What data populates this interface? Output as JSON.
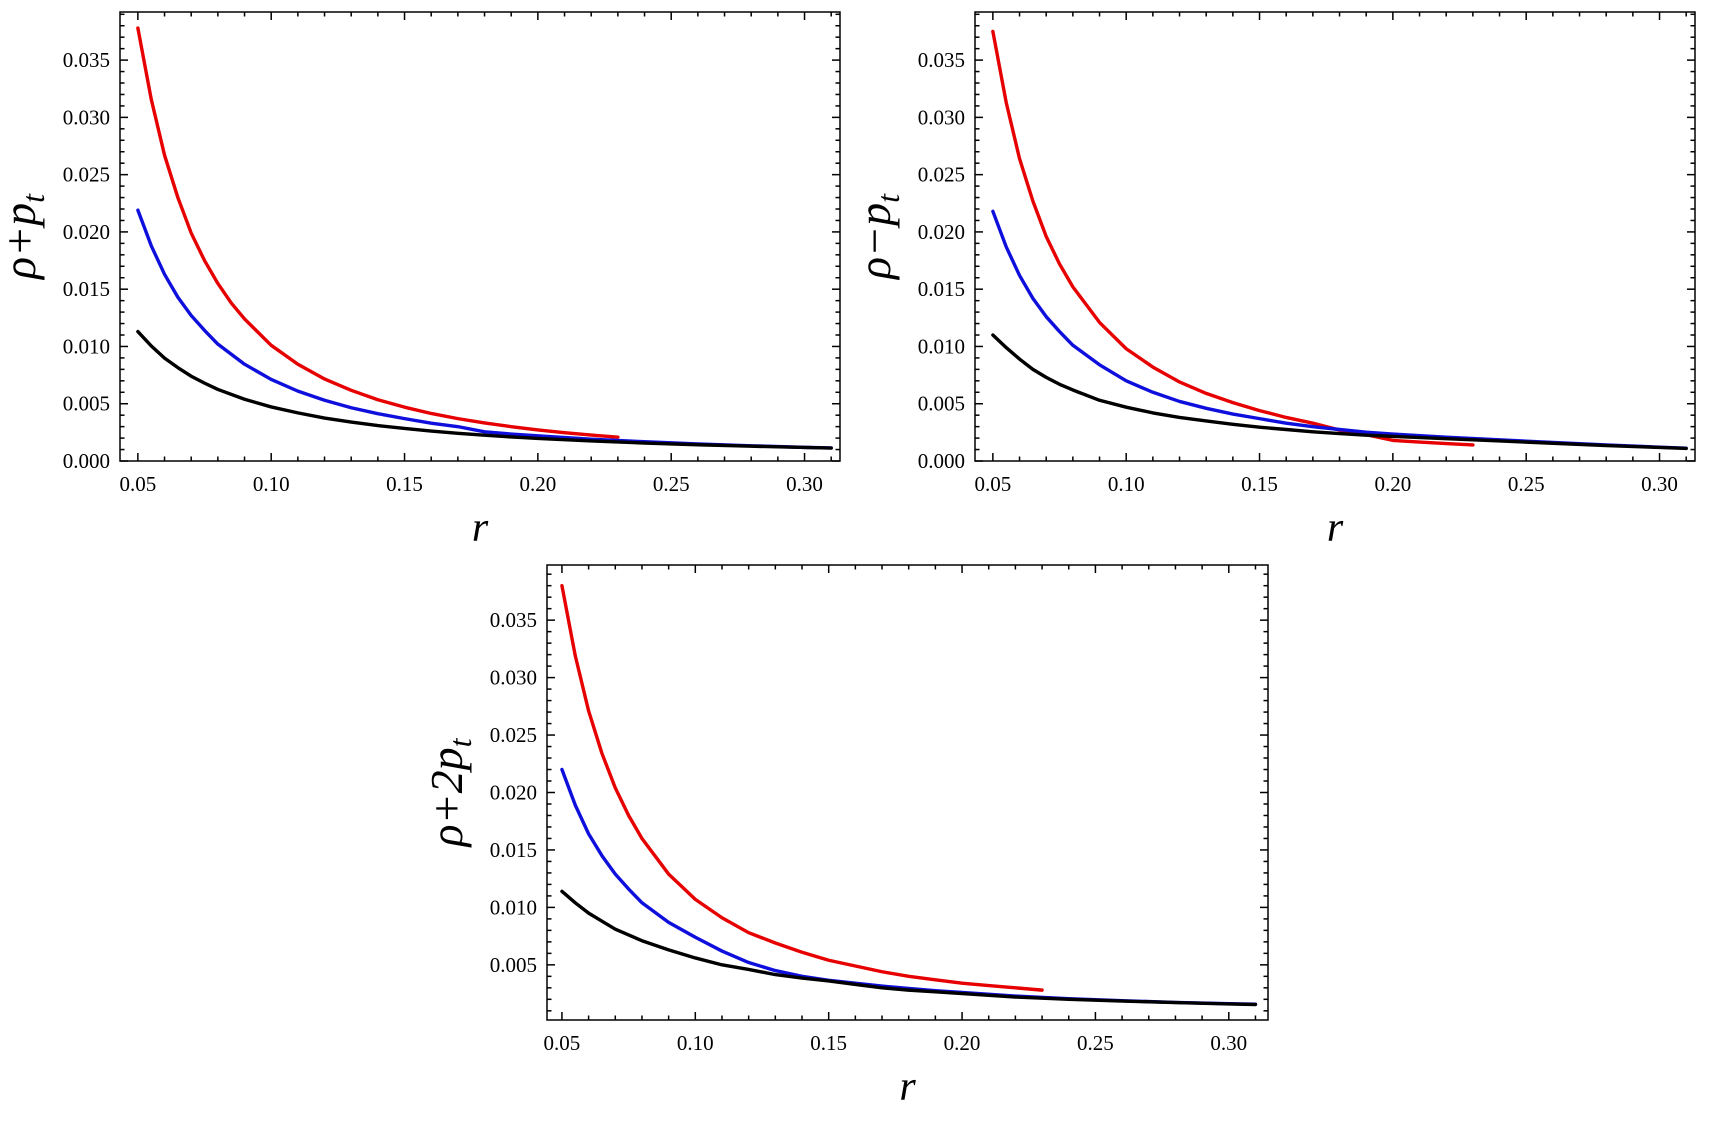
{
  "figure": {
    "background": "#ffffff",
    "colors": {
      "red": "#e60000",
      "blue": "#0f0fdd",
      "black": "#000000"
    },
    "frame_color": "#000000",
    "tick_label_color": "#000000"
  },
  "chart_data": [
    {
      "id": "top-left",
      "type": "line",
      "title": "",
      "xlabel": "r",
      "ylabel": "ρ+p_t",
      "xlim": [
        0.0433,
        0.3133
      ],
      "ylim": [
        0.0,
        0.0392
      ],
      "xticks": [
        0.05,
        0.1,
        0.15,
        0.2,
        0.25,
        0.3
      ],
      "xtick_labels": [
        "0.05",
        "0.10",
        "0.15",
        "0.20",
        "0.25",
        "0.30"
      ],
      "yticks": [
        0.0,
        0.005,
        0.01,
        0.015,
        0.02,
        0.025,
        0.03,
        0.035
      ],
      "ytick_labels": [
        "0.000",
        "0.005",
        "0.010",
        "0.015",
        "0.020",
        "0.025",
        "0.030",
        "0.035"
      ],
      "x_minor_step": 0.01,
      "y_minor_step": 0.001,
      "grid": false,
      "legend": "none",
      "series": [
        {
          "name": "red-curve",
          "color_key": "red",
          "points": [
            [
              0.05,
              0.0378
            ],
            [
              0.055,
              0.0316
            ],
            [
              0.06,
              0.0267
            ],
            [
              0.065,
              0.023
            ],
            [
              0.07,
              0.0199
            ],
            [
              0.075,
              0.0175
            ],
            [
              0.08,
              0.0155
            ],
            [
              0.085,
              0.0138
            ],
            [
              0.09,
              0.0124
            ],
            [
              0.1,
              0.0101
            ],
            [
              0.11,
              0.00845
            ],
            [
              0.12,
              0.00716
            ],
            [
              0.13,
              0.00617
            ],
            [
              0.14,
              0.00535
            ],
            [
              0.15,
              0.0047
            ],
            [
              0.16,
              0.00415
            ],
            [
              0.17,
              0.0037
            ],
            [
              0.18,
              0.00332
            ],
            [
              0.19,
              0.003
            ],
            [
              0.2,
              0.00271
            ],
            [
              0.21,
              0.00247
            ],
            [
              0.22,
              0.00226
            ],
            [
              0.23,
              0.00208
            ]
          ]
        },
        {
          "name": "blue-curve",
          "color_key": "blue",
          "points": [
            [
              0.05,
              0.0219
            ],
            [
              0.055,
              0.0188
            ],
            [
              0.06,
              0.0163
            ],
            [
              0.065,
              0.0143
            ],
            [
              0.07,
              0.0127
            ],
            [
              0.075,
              0.0114
            ],
            [
              0.08,
              0.0102
            ],
            [
              0.09,
              0.00845
            ],
            [
              0.1,
              0.00712
            ],
            [
              0.11,
              0.0061
            ],
            [
              0.12,
              0.0053
            ],
            [
              0.13,
              0.00465
            ],
            [
              0.14,
              0.00413
            ],
            [
              0.15,
              0.0037
            ],
            [
              0.16,
              0.0033
            ],
            [
              0.17,
              0.003
            ],
            [
              0.18,
              0.00255
            ],
            [
              0.19,
              0.00235
            ],
            [
              0.2,
              0.0022
            ],
            [
              0.22,
              0.0019
            ],
            [
              0.24,
              0.00168
            ],
            [
              0.26,
              0.00149
            ],
            [
              0.28,
              0.00133
            ],
            [
              0.3,
              0.00119
            ],
            [
              0.31,
              0.00114
            ]
          ]
        },
        {
          "name": "black-curve",
          "color_key": "black",
          "points": [
            [
              0.05,
              0.0113
            ],
            [
              0.055,
              0.01005
            ],
            [
              0.06,
              0.00898
            ],
            [
              0.065,
              0.00815
            ],
            [
              0.07,
              0.0074
            ],
            [
              0.075,
              0.0068
            ],
            [
              0.08,
              0.00625
            ],
            [
              0.09,
              0.00539
            ],
            [
              0.1,
              0.00472
            ],
            [
              0.11,
              0.0042
            ],
            [
              0.12,
              0.00375
            ],
            [
              0.13,
              0.0034
            ],
            [
              0.14,
              0.00309
            ],
            [
              0.15,
              0.00284
            ],
            [
              0.16,
              0.00261
            ],
            [
              0.17,
              0.00242
            ],
            [
              0.18,
              0.00225
            ],
            [
              0.19,
              0.0021
            ],
            [
              0.2,
              0.00197
            ],
            [
              0.22,
              0.00175
            ],
            [
              0.24,
              0.00157
            ],
            [
              0.26,
              0.00142
            ],
            [
              0.28,
              0.00129
            ],
            [
              0.3,
              0.00118
            ],
            [
              0.31,
              0.00113
            ]
          ]
        }
      ]
    },
    {
      "id": "top-right",
      "type": "line",
      "title": "",
      "xlabel": "r",
      "ylabel": "ρ−p_t",
      "xlim": [
        0.0433,
        0.3133
      ],
      "ylim": [
        0.0,
        0.0392
      ],
      "xticks": [
        0.05,
        0.1,
        0.15,
        0.2,
        0.25,
        0.3
      ],
      "xtick_labels": [
        "0.05",
        "0.10",
        "0.15",
        "0.20",
        "0.25",
        "0.30"
      ],
      "yticks": [
        0.0,
        0.005,
        0.01,
        0.015,
        0.02,
        0.025,
        0.03,
        0.035
      ],
      "ytick_labels": [
        "0.000",
        "0.005",
        "0.010",
        "0.015",
        "0.020",
        "0.025",
        "0.030",
        "0.035"
      ],
      "x_minor_step": 0.01,
      "y_minor_step": 0.001,
      "grid": false,
      "legend": "none",
      "series": [
        {
          "name": "red-curve",
          "color_key": "red",
          "points": [
            [
              0.05,
              0.0375
            ],
            [
              0.055,
              0.0313
            ],
            [
              0.06,
              0.0264
            ],
            [
              0.065,
              0.0227
            ],
            [
              0.07,
              0.0196
            ],
            [
              0.075,
              0.0172
            ],
            [
              0.08,
              0.0152
            ],
            [
              0.09,
              0.0121
            ],
            [
              0.1,
              0.0098
            ],
            [
              0.11,
              0.0082
            ],
            [
              0.12,
              0.0069
            ],
            [
              0.13,
              0.0059
            ],
            [
              0.14,
              0.0051
            ],
            [
              0.15,
              0.0044
            ],
            [
              0.16,
              0.0038
            ],
            [
              0.17,
              0.0033
            ],
            [
              0.18,
              0.0027
            ],
            [
              0.19,
              0.0023
            ],
            [
              0.2,
              0.0018
            ],
            [
              0.21,
              0.00165
            ],
            [
              0.22,
              0.00152
            ],
            [
              0.23,
              0.0014
            ]
          ]
        },
        {
          "name": "blue-curve",
          "color_key": "blue",
          "points": [
            [
              0.05,
              0.0218
            ],
            [
              0.055,
              0.0187
            ],
            [
              0.06,
              0.0162
            ],
            [
              0.065,
              0.0142
            ],
            [
              0.07,
              0.0126
            ],
            [
              0.075,
              0.0113
            ],
            [
              0.08,
              0.0101
            ],
            [
              0.09,
              0.0084
            ],
            [
              0.1,
              0.007
            ],
            [
              0.11,
              0.006
            ],
            [
              0.12,
              0.0052
            ],
            [
              0.13,
              0.0046
            ],
            [
              0.14,
              0.0041
            ],
            [
              0.15,
              0.0037
            ],
            [
              0.16,
              0.0033
            ],
            [
              0.17,
              0.003
            ],
            [
              0.18,
              0.00275
            ],
            [
              0.19,
              0.00252
            ],
            [
              0.2,
              0.00235
            ],
            [
              0.22,
              0.00208
            ],
            [
              0.24,
              0.00185
            ],
            [
              0.26,
              0.00162
            ],
            [
              0.28,
              0.0014
            ],
            [
              0.3,
              0.00121
            ],
            [
              0.31,
              0.00112
            ]
          ]
        },
        {
          "name": "black-curve",
          "color_key": "black",
          "points": [
            [
              0.05,
              0.011
            ],
            [
              0.055,
              0.0099
            ],
            [
              0.06,
              0.0089
            ],
            [
              0.065,
              0.008
            ],
            [
              0.07,
              0.0073
            ],
            [
              0.075,
              0.0067
            ],
            [
              0.08,
              0.0062
            ],
            [
              0.09,
              0.0053
            ],
            [
              0.1,
              0.0047
            ],
            [
              0.11,
              0.0042
            ],
            [
              0.12,
              0.0038
            ],
            [
              0.13,
              0.0035
            ],
            [
              0.14,
              0.0032
            ],
            [
              0.15,
              0.00295
            ],
            [
              0.16,
              0.00275
            ],
            [
              0.17,
              0.00255
            ],
            [
              0.18,
              0.0024
            ],
            [
              0.19,
              0.00225
            ],
            [
              0.2,
              0.00215
            ],
            [
              0.22,
              0.00195
            ],
            [
              0.24,
              0.00175
            ],
            [
              0.26,
              0.00155
            ],
            [
              0.28,
              0.00135
            ],
            [
              0.3,
              0.00118
            ],
            [
              0.31,
              0.0011
            ]
          ]
        }
      ]
    },
    {
      "id": "bottom-center",
      "type": "line",
      "title": "",
      "xlabel": "r",
      "ylabel": "ρ+2p_t",
      "xlim": [
        0.0444,
        0.3147
      ],
      "ylim": [
        0.0002,
        0.0398
      ],
      "xticks": [
        0.05,
        0.1,
        0.15,
        0.2,
        0.25,
        0.3
      ],
      "xtick_labels": [
        "0.05",
        "0.10",
        "0.15",
        "0.20",
        "0.25",
        "0.30"
      ],
      "yticks": [
        0.005,
        0.01,
        0.015,
        0.02,
        0.025,
        0.03,
        0.035
      ],
      "ytick_labels": [
        "0.005",
        "0.010",
        "0.015",
        "0.020",
        "0.025",
        "0.030",
        "0.035"
      ],
      "x_minor_step": 0.01,
      "y_minor_step": 0.001,
      "grid": false,
      "legend": "none",
      "series": [
        {
          "name": "red-curve",
          "color_key": "red",
          "points": [
            [
              0.05,
              0.038
            ],
            [
              0.055,
              0.0319
            ],
            [
              0.06,
              0.0271
            ],
            [
              0.065,
              0.0234
            ],
            [
              0.07,
              0.0204
            ],
            [
              0.075,
              0.018
            ],
            [
              0.08,
              0.016
            ],
            [
              0.09,
              0.0129
            ],
            [
              0.1,
              0.0107
            ],
            [
              0.11,
              0.0091
            ],
            [
              0.12,
              0.0078
            ],
            [
              0.13,
              0.0069
            ],
            [
              0.14,
              0.0061
            ],
            [
              0.15,
              0.0054
            ],
            [
              0.16,
              0.0049
            ],
            [
              0.17,
              0.0044
            ],
            [
              0.18,
              0.004
            ],
            [
              0.19,
              0.0037
            ],
            [
              0.2,
              0.0034
            ],
            [
              0.21,
              0.0032
            ],
            [
              0.22,
              0.003
            ],
            [
              0.23,
              0.0028
            ]
          ]
        },
        {
          "name": "blue-curve",
          "color_key": "blue",
          "points": [
            [
              0.05,
              0.022
            ],
            [
              0.055,
              0.0189
            ],
            [
              0.06,
              0.0164
            ],
            [
              0.065,
              0.0145
            ],
            [
              0.07,
              0.0129
            ],
            [
              0.075,
              0.0116
            ],
            [
              0.08,
              0.0104
            ],
            [
              0.09,
              0.0087
            ],
            [
              0.1,
              0.0074
            ],
            [
              0.11,
              0.0062
            ],
            [
              0.12,
              0.0052
            ],
            [
              0.13,
              0.0045
            ],
            [
              0.14,
              0.004
            ],
            [
              0.15,
              0.00365
            ],
            [
              0.16,
              0.0034
            ],
            [
              0.17,
              0.00315
            ],
            [
              0.18,
              0.00295
            ],
            [
              0.19,
              0.00275
            ],
            [
              0.2,
              0.0026
            ],
            [
              0.22,
              0.00228
            ],
            [
              0.24,
              0.00205
            ],
            [
              0.26,
              0.00188
            ],
            [
              0.28,
              0.00173
            ],
            [
              0.3,
              0.00162
            ],
            [
              0.31,
              0.00157
            ]
          ]
        },
        {
          "name": "black-curve",
          "color_key": "black",
          "points": [
            [
              0.05,
              0.0114
            ],
            [
              0.055,
              0.0104
            ],
            [
              0.06,
              0.0095
            ],
            [
              0.065,
              0.0088
            ],
            [
              0.07,
              0.0081
            ],
            [
              0.075,
              0.0076
            ],
            [
              0.08,
              0.0071
            ],
            [
              0.09,
              0.0063
            ],
            [
              0.1,
              0.0056
            ],
            [
              0.11,
              0.005
            ],
            [
              0.12,
              0.0046
            ],
            [
              0.13,
              0.00415
            ],
            [
              0.14,
              0.00385
            ],
            [
              0.15,
              0.0036
            ],
            [
              0.16,
              0.0033
            ],
            [
              0.17,
              0.003
            ],
            [
              0.18,
              0.0028
            ],
            [
              0.19,
              0.00265
            ],
            [
              0.2,
              0.0025
            ],
            [
              0.22,
              0.0022
            ],
            [
              0.24,
              0.002
            ],
            [
              0.26,
              0.00185
            ],
            [
              0.28,
              0.00172
            ],
            [
              0.3,
              0.0016
            ],
            [
              0.31,
              0.00155
            ]
          ]
        }
      ]
    }
  ]
}
